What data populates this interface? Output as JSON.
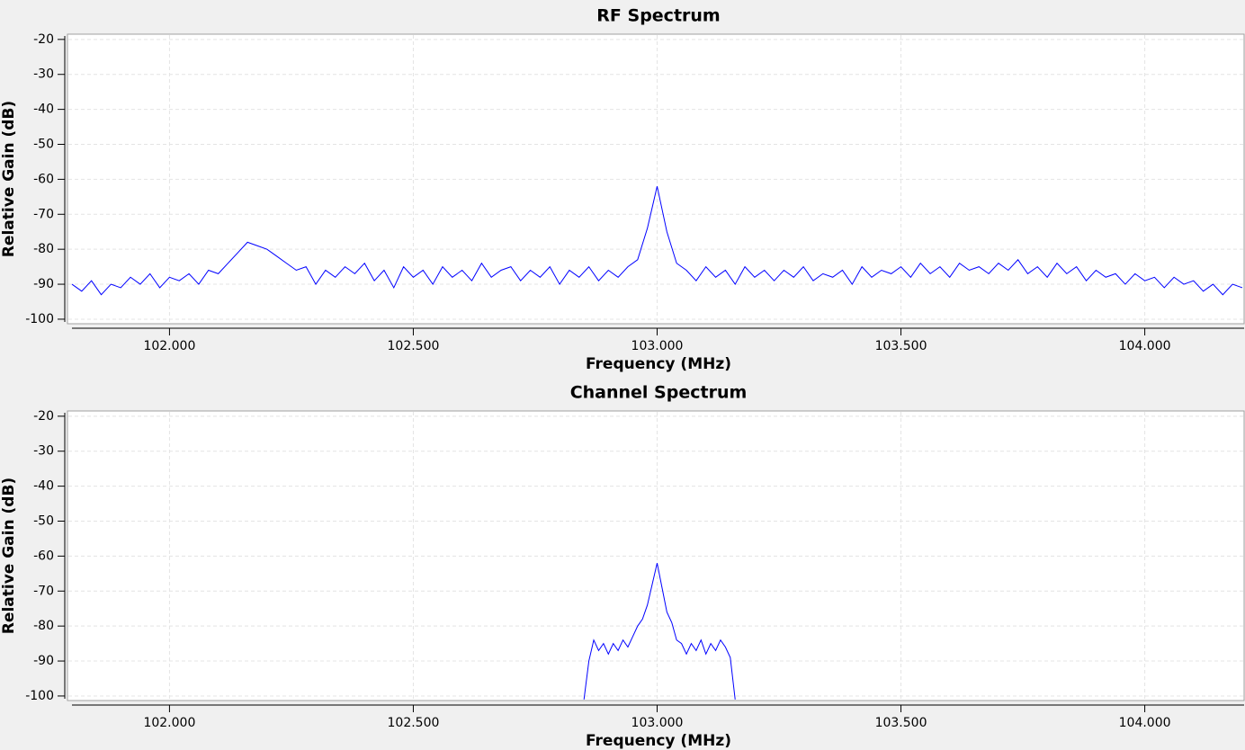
{
  "chart_data": [
    {
      "type": "line",
      "title": "RF Spectrum",
      "x_label": "Frequency (MHz)",
      "y_label": "Relative Gain (dB)",
      "color": "#0000ff",
      "grid": true,
      "xlim": [
        101.8,
        104.2
      ],
      "ylim": [
        -101.3,
        -18.5
      ],
      "xticks": [
        {
          "value": 102,
          "label": "102.000"
        },
        {
          "value": 102.5,
          "label": "102.500"
        },
        {
          "value": 103,
          "label": "103.000"
        },
        {
          "value": 103.5,
          "label": "103.500"
        },
        {
          "value": 104,
          "label": "104.000"
        }
      ],
      "yticks": [
        -20,
        -30,
        -40,
        -50,
        -60,
        -70,
        -80,
        -90,
        -100
      ],
      "x": [
        101.8,
        101.82,
        101.84,
        101.86,
        101.88,
        101.9,
        101.92,
        101.94,
        101.96,
        101.98,
        102.0,
        102.02,
        102.04,
        102.06,
        102.08,
        102.1,
        102.12,
        102.14,
        102.16,
        102.18,
        102.2,
        102.22,
        102.24,
        102.26,
        102.28,
        102.3,
        102.32,
        102.34,
        102.36,
        102.38,
        102.4,
        102.42,
        102.44,
        102.46,
        102.48,
        102.5,
        102.52,
        102.54,
        102.56,
        102.58,
        102.6,
        102.62,
        102.64,
        102.66,
        102.68,
        102.7,
        102.72,
        102.74,
        102.76,
        102.78,
        102.8,
        102.82,
        102.84,
        102.86,
        102.88,
        102.9,
        102.92,
        102.94,
        102.96,
        102.98,
        103.0,
        103.02,
        103.04,
        103.06,
        103.08,
        103.1,
        103.12,
        103.14,
        103.16,
        103.18,
        103.2,
        103.22,
        103.24,
        103.26,
        103.28,
        103.3,
        103.32,
        103.34,
        103.36,
        103.38,
        103.4,
        103.42,
        103.44,
        103.46,
        103.48,
        103.5,
        103.52,
        103.54,
        103.56,
        103.58,
        103.6,
        103.62,
        103.64,
        103.66,
        103.68,
        103.7,
        103.72,
        103.74,
        103.76,
        103.78,
        103.8,
        103.82,
        103.84,
        103.86,
        103.88,
        103.9,
        103.92,
        103.94,
        103.96,
        103.98,
        104.0,
        104.02,
        104.04,
        104.06,
        104.08,
        104.1,
        104.12,
        104.14,
        104.16,
        104.18,
        104.2
      ],
      "values": [
        -90,
        -92,
        -89,
        -93,
        -90,
        -91,
        -88,
        -90,
        -87,
        -91,
        -88,
        -89,
        -87,
        -90,
        -86,
        -87,
        -84,
        -81,
        -78,
        -79,
        -80,
        -82,
        -84,
        -86,
        -85,
        -90,
        -86,
        -88,
        -85,
        -87,
        -84,
        -89,
        -86,
        -91,
        -85,
        -88,
        -86,
        -90,
        -85,
        -88,
        -86,
        -89,
        -84,
        -88,
        -86,
        -85,
        -89,
        -86,
        -88,
        -85,
        -90,
        -86,
        -88,
        -85,
        -89,
        -86,
        -88,
        -85,
        -83,
        -74,
        -62,
        -75,
        -84,
        -86,
        -89,
        -85,
        -88,
        -86,
        -90,
        -85,
        -88,
        -86,
        -89,
        -86,
        -88,
        -85,
        -89,
        -87,
        -88,
        -86,
        -90,
        -85,
        -88,
        -86,
        -87,
        -85,
        -88,
        -84,
        -87,
        -85,
        -88,
        -84,
        -86,
        -85,
        -87,
        -84,
        -86,
        -83,
        -87,
        -85,
        -88,
        -84,
        -87,
        -85,
        -89,
        -86,
        -88,
        -87,
        -90,
        -87,
        -89,
        -88,
        -91,
        -88,
        -90,
        -89,
        -92,
        -90,
        -93,
        -90,
        -91
      ]
    },
    {
      "type": "line",
      "title": "Channel Spectrum",
      "x_label": "Frequency (MHz)",
      "y_label": "Relative Gain (dB)",
      "color": "#0000ff",
      "grid": true,
      "xlim": [
        101.8,
        104.2
      ],
      "ylim": [
        -101.3,
        -18.5
      ],
      "xticks": [
        {
          "value": 102,
          "label": "102.000"
        },
        {
          "value": 102.5,
          "label": "102.500"
        },
        {
          "value": 103,
          "label": "103.000"
        },
        {
          "value": 103.5,
          "label": "103.500"
        },
        {
          "value": 104,
          "label": "104.000"
        }
      ],
      "yticks": [
        -20,
        -30,
        -40,
        -50,
        -60,
        -70,
        -80,
        -90,
        -100
      ],
      "x": [
        102.85,
        102.86,
        102.87,
        102.88,
        102.89,
        102.9,
        102.91,
        102.92,
        102.93,
        102.94,
        102.95,
        102.96,
        102.97,
        102.98,
        102.99,
        103.0,
        103.01,
        103.02,
        103.03,
        103.04,
        103.05,
        103.06,
        103.07,
        103.08,
        103.09,
        103.1,
        103.11,
        103.12,
        103.13,
        103.14,
        103.15,
        103.16
      ],
      "values": [
        -101,
        -90,
        -84,
        -87,
        -85,
        -88,
        -85,
        -87,
        -84,
        -86,
        -83,
        -80,
        -78,
        -74,
        -68,
        -62,
        -69,
        -76,
        -79,
        -84,
        -85,
        -88,
        -85,
        -87,
        -84,
        -88,
        -85,
        -87,
        -84,
        -86,
        -89,
        -101
      ]
    }
  ]
}
